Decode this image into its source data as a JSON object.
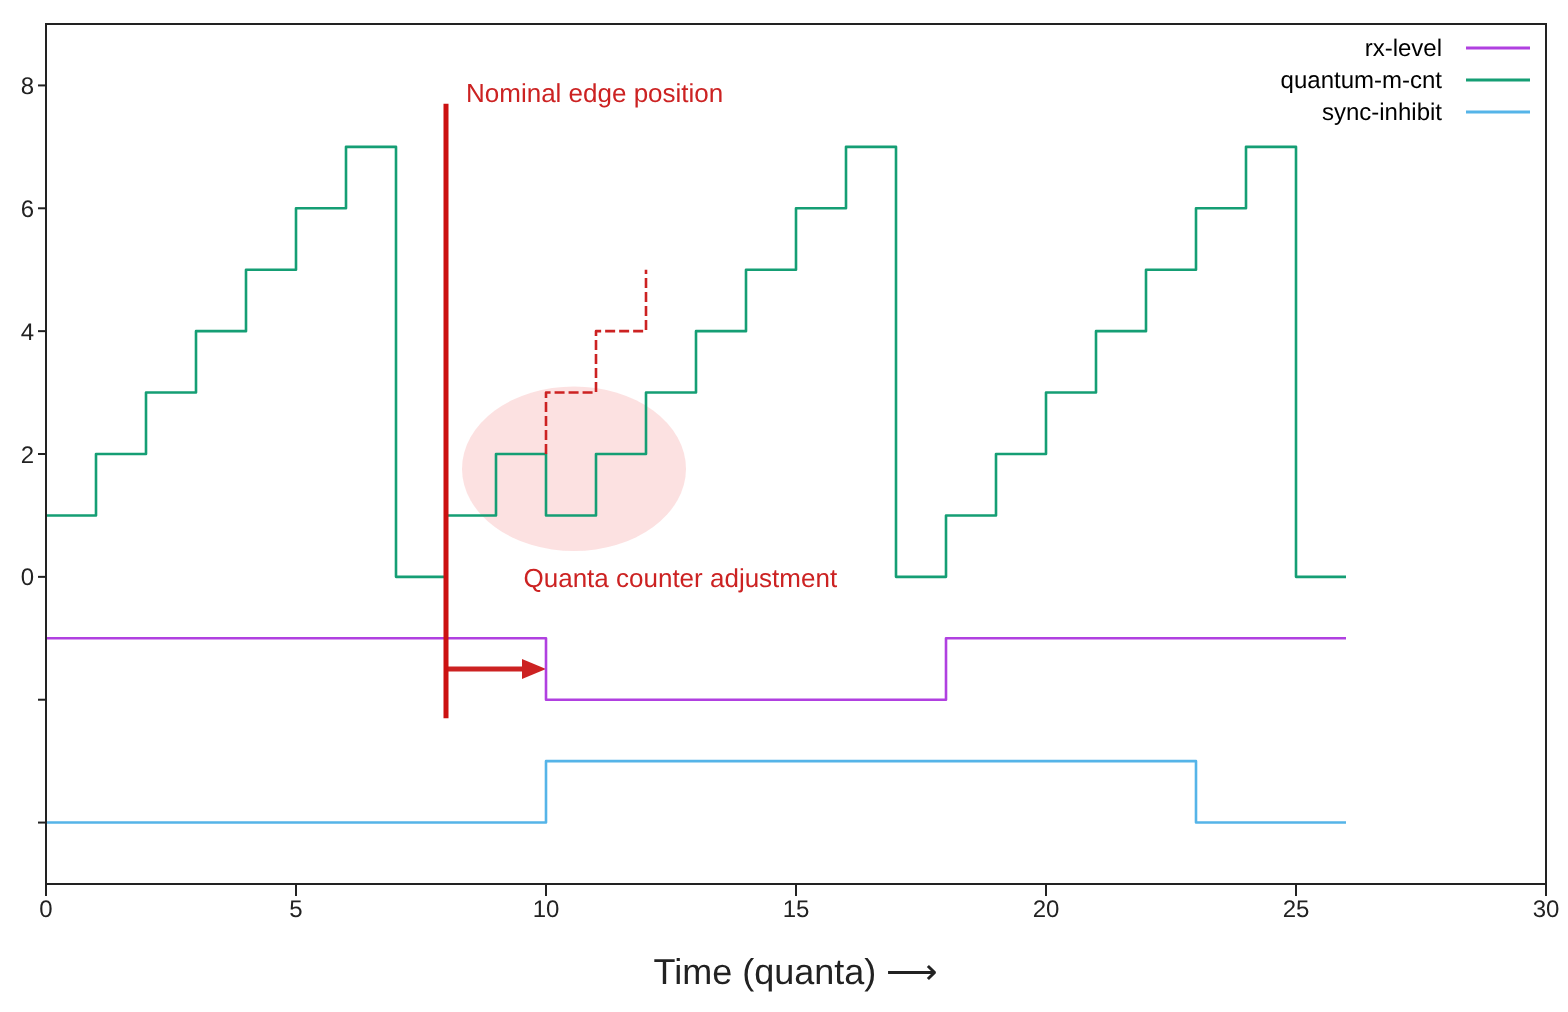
{
  "chart_data": {
    "type": "step",
    "xlabel": "Time (quanta) ⟶",
    "xlim": [
      0,
      30
    ],
    "xticks": [
      0,
      5,
      10,
      15,
      20,
      25,
      30
    ],
    "ylim": [
      -5,
      9
    ],
    "yticks": [
      {
        "value": -4,
        "label": null
      },
      {
        "value": -2,
        "label": null
      },
      0,
      2,
      4,
      6,
      8
    ],
    "grid": false,
    "legend": "top right",
    "marker": "none",
    "series": [
      {
        "name": "rx-level",
        "color": "#b040e0",
        "x": [
          0,
          10,
          18,
          26
        ],
        "values": [
          -1,
          -2,
          -1,
          -1
        ]
      },
      {
        "name": "quantum-m-cnt",
        "color": "#159e74",
        "x": [
          0,
          1,
          2,
          3,
          4,
          5,
          6,
          7,
          8,
          9,
          10,
          11,
          12,
          13,
          14,
          15,
          16,
          17,
          18,
          19,
          20,
          21,
          22,
          23,
          24,
          25,
          26
        ],
        "values": [
          1,
          2,
          3,
          4,
          5,
          6,
          7,
          0,
          1,
          2,
          1,
          2,
          3,
          4,
          5,
          6,
          7,
          0,
          1,
          2,
          3,
          4,
          5,
          6,
          7,
          0,
          0
        ]
      },
      {
        "name": "sync-inhibit",
        "color": "#55b4e8",
        "x": [
          0,
          10,
          23,
          26
        ],
        "values": [
          -4,
          -3,
          -4,
          -4
        ]
      },
      {
        "color": "#cc2222",
        "x": [
          10,
          10,
          11,
          12
        ],
        "values": [
          2,
          3,
          4,
          5
        ],
        "line_style": "dashed"
      },
      {
        "type": "line",
        "color": "#cc1111",
        "x": [
          8,
          8
        ],
        "values": [
          7.7,
          -2.3
        ]
      }
    ],
    "annotations": [
      "Nominal edge position",
      "Quanta counter adjustment"
    ]
  }
}
